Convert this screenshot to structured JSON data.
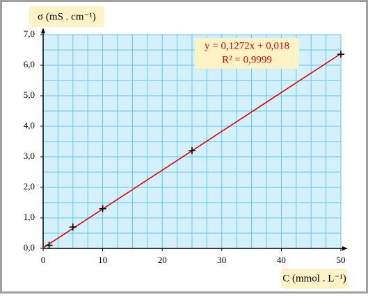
{
  "chart_data": {
    "type": "scatter",
    "y_label": "σ (mS . cm⁻¹)",
    "x_label": "C (mmol . L⁻¹)",
    "x": [
      1,
      5,
      10,
      25,
      50
    ],
    "values": [
      0.1,
      0.7,
      1.3,
      3.2,
      6.36
    ],
    "color": "#000000",
    "fit": {
      "slope": 0.1272,
      "intercept": 0.018,
      "equation": "y = 0,1272x + 0,018",
      "r2": 0.9999,
      "r2_label": "R² = 0,9999",
      "color": "#e00000"
    },
    "xlim": [
      0,
      50
    ],
    "xticks": [
      0,
      10,
      20,
      30,
      40,
      50
    ],
    "ylim": [
      0,
      7
    ],
    "yticks": [
      {
        "value": 0,
        "label": "0,0"
      },
      {
        "value": 1,
        "label": "1,0"
      },
      {
        "value": 2,
        "label": "2,0"
      },
      {
        "value": 3,
        "label": "3,0"
      },
      {
        "value": 4,
        "label": "4,0"
      },
      {
        "value": 5,
        "label": "5,0"
      },
      {
        "value": 6,
        "label": "6,0"
      },
      {
        "value": 7,
        "label": "7,0"
      }
    ],
    "grid": true
  }
}
